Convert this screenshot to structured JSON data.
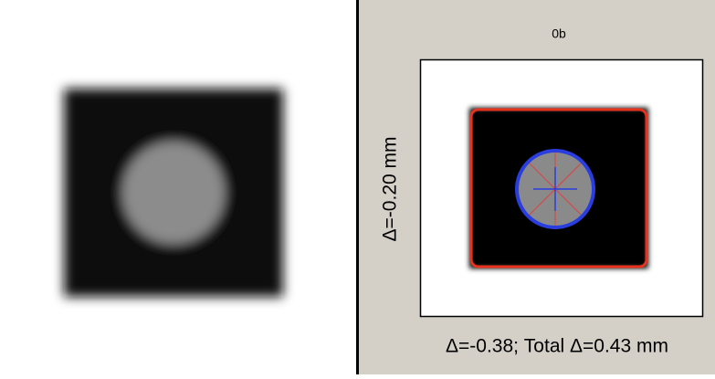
{
  "panel_title": "0b",
  "y_label": "Δ=-0.20 mm",
  "x_label": "Δ=-0.38; Total Δ=0.43 mm"
}
